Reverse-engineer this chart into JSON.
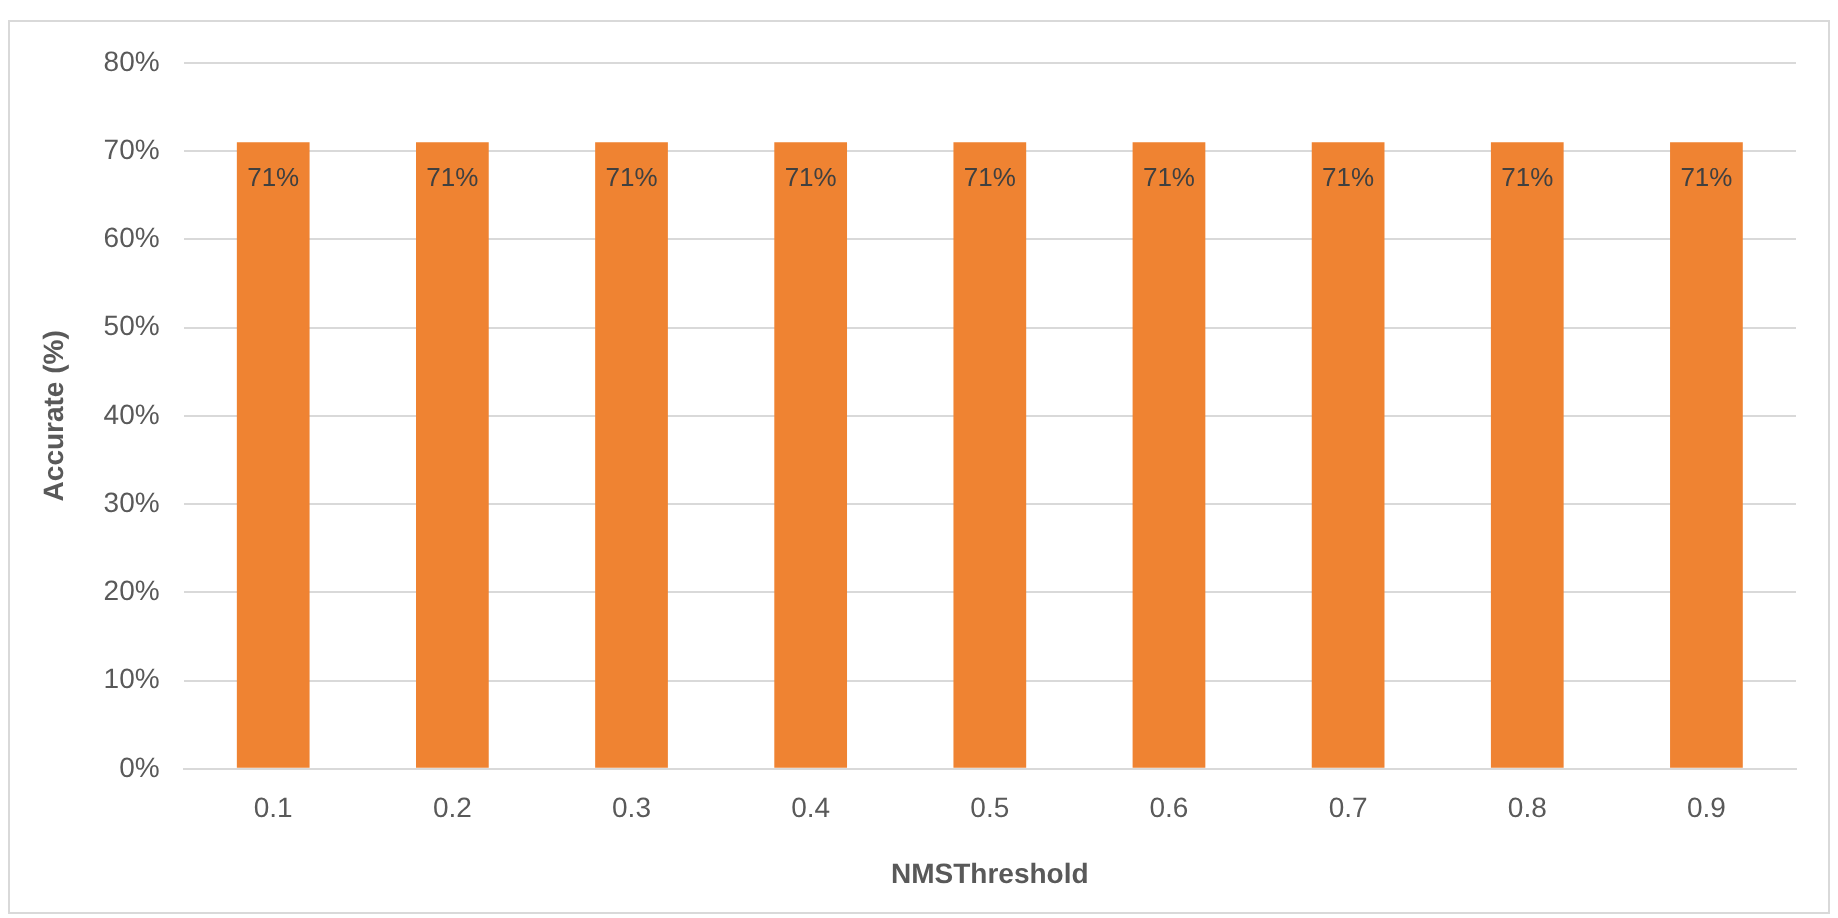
{
  "chart_data": {
    "type": "bar",
    "xlabel": "NMSThreshold",
    "ylabel": "Accurate (%)",
    "categories": [
      "0.1",
      "0.2",
      "0.3",
      "0.4",
      "0.5",
      "0.6",
      "0.7",
      "0.8",
      "0.9"
    ],
    "values": [
      71,
      71,
      71,
      71,
      71,
      71,
      71,
      71,
      71
    ],
    "value_labels": [
      "71%",
      "71%",
      "71%",
      "71%",
      "71%",
      "71%",
      "71%",
      "71%",
      "71%"
    ],
    "color": "#ef8332",
    "ylim": [
      0,
      80
    ],
    "yticks": [
      {
        "value": 0,
        "label": "0%"
      },
      {
        "value": 10,
        "label": "10%"
      },
      {
        "value": 20,
        "label": "20%"
      },
      {
        "value": 30,
        "label": "30%"
      },
      {
        "value": 40,
        "label": "40%"
      },
      {
        "value": 50,
        "label": "50%"
      },
      {
        "value": 60,
        "label": "60%"
      },
      {
        "value": 70,
        "label": "70%"
      },
      {
        "value": 80,
        "label": "80%"
      }
    ],
    "grid": "y",
    "legend": false
  }
}
